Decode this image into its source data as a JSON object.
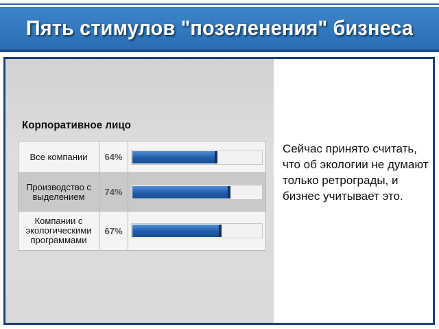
{
  "title": "Пять стимулов \"позеленения\" бизнеса",
  "note": "Сейчас принято считать, что об экологии не думают только ретрограды, и бизнес учитывает это.",
  "colors": {
    "header": "#2f78bd",
    "bar": "#1f5ca8",
    "frame": "#1d3f7a"
  },
  "chart_data": {
    "type": "bar",
    "title": "Корпоративное лицо",
    "categories": [
      "Все компании",
      "Производство с выделением",
      "Компании с экологическими программами"
    ],
    "values": [
      64,
      74,
      67
    ],
    "value_labels": [
      "64%",
      "74%",
      "67%"
    ],
    "ylim": [
      0,
      100
    ],
    "orientation": "horizontal",
    "grid": false
  }
}
